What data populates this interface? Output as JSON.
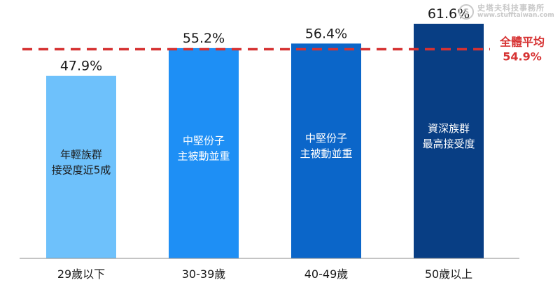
{
  "chart_data": {
    "type": "bar",
    "categories": [
      "29歲以下",
      "30-39歲",
      "40-49歲",
      "50歲以上"
    ],
    "values": [
      47.9,
      55.2,
      56.4,
      61.6
    ],
    "value_labels": [
      "47.9%",
      "55.2%",
      "56.4%",
      "61.6%"
    ],
    "bar_annotations": [
      [
        "年輕族群",
        "接受度近5成"
      ],
      [
        "中堅份子",
        "主被動並重"
      ],
      [
        "中堅份子",
        "主被動並重"
      ],
      [
        "資深族群",
        "最高接受度"
      ]
    ],
    "colors": [
      "#6ec1fb",
      "#1e8ff5",
      "#0b66c9",
      "#083e84"
    ],
    "average": {
      "value": 54.9,
      "label": "全體平均",
      "value_label": "54.9%",
      "color": "#d63232"
    },
    "ylim": [
      0,
      66
    ],
    "grid": false,
    "legend": "none",
    "axis_color": "#8a8a8a"
  },
  "watermark": {
    "name": "史塔夫科技事務所",
    "url": "www.stufftaiwan.com",
    "logo_letter": "S"
  }
}
